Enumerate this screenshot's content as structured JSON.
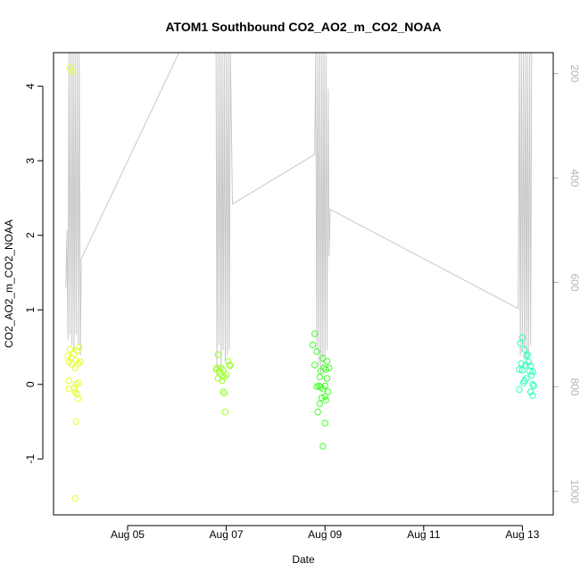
{
  "chart_data": {
    "type": "scatter",
    "title": "ATOM1 Southbound CO2_AO2_m_CO2_NOAA",
    "xlabel": "Date",
    "ylabel": "CO2_AO2_m_CO2_NOAA",
    "xlim": [
      "2016-08-03T12:00",
      "2016-08-13T15:00"
    ],
    "ylim": [
      -1.75,
      4.45
    ],
    "y_ticks": [
      "-1",
      "0",
      "1",
      "2",
      "3",
      "4"
    ],
    "x_ticks": [
      {
        "label": "Aug 05",
        "date": "2016-08-05"
      },
      {
        "label": "Aug 07",
        "date": "2016-08-07"
      },
      {
        "label": "Aug 09",
        "date": "2016-08-09"
      },
      {
        "label": "Aug 11",
        "date": "2016-08-11"
      },
      {
        "label": "Aug 13",
        "date": "2016-08-13"
      }
    ],
    "right_axis": {
      "description": "secondary axis (grey trace), inverted",
      "lim_top": 160,
      "lim_bottom": 1045,
      "ticks": [
        "200",
        "400",
        "600",
        "800",
        "1000"
      ],
      "color": "#b4b4b4"
    },
    "grid": false,
    "series": [
      {
        "color": "#e4ff2a",
        "points": [
          [
            "2016-08-03T20:00",
            4.25
          ],
          [
            "2016-08-03T21:00",
            4.2
          ],
          [
            "2016-08-03T19:00",
            0.38
          ],
          [
            "2016-08-03T19:30",
            0.3
          ],
          [
            "2016-08-03T20:00",
            0.47
          ],
          [
            "2016-08-03T20:30",
            0.35
          ],
          [
            "2016-08-03T21:00",
            0.27
          ],
          [
            "2016-08-03T22:00",
            0.41
          ],
          [
            "2016-08-03T22:30",
            0.22
          ],
          [
            "2016-08-03T23:00",
            0.32
          ],
          [
            "2016-08-03T23:30",
            0.45
          ],
          [
            "2016-08-04T00:30",
            0.5
          ],
          [
            "2016-08-04T01:00",
            0.3
          ],
          [
            "2016-08-04T00:00",
            0.28
          ],
          [
            "2016-08-03T19:30",
            0.05
          ],
          [
            "2016-08-03T19:30",
            -0.06
          ],
          [
            "2016-08-03T22:00",
            -0.05
          ],
          [
            "2016-08-03T22:30",
            -0.1
          ],
          [
            "2016-08-03T23:00",
            0.0
          ],
          [
            "2016-08-04T00:00",
            0.02
          ],
          [
            "2016-08-03T23:30",
            -0.13
          ],
          [
            "2016-08-04T00:00",
            -0.19
          ],
          [
            "2016-08-03T23:00",
            -0.5
          ],
          [
            "2016-08-03T22:30",
            -1.53
          ]
        ]
      },
      {
        "color": "#9dff2a",
        "points": [
          [
            "2016-08-06T20:00",
            0.4
          ],
          [
            "2016-08-06T19:00",
            0.2
          ],
          [
            "2016-08-06T19:30",
            0.22
          ],
          [
            "2016-08-06T20:30",
            0.18
          ],
          [
            "2016-08-06T21:00",
            0.15
          ],
          [
            "2016-08-06T21:30",
            0.22
          ],
          [
            "2016-08-06T22:00",
            0.12
          ],
          [
            "2016-08-06T22:30",
            0.19
          ],
          [
            "2016-08-06T23:00",
            0.1
          ],
          [
            "2016-08-07T00:00",
            0.13
          ],
          [
            "2016-08-07T01:00",
            0.31
          ],
          [
            "2016-08-07T01:30",
            0.26
          ],
          [
            "2016-08-07T02:00",
            0.25
          ],
          [
            "2016-08-06T20:00",
            0.08
          ],
          [
            "2016-08-06T22:00",
            0.05
          ],
          [
            "2016-08-06T22:30",
            -0.1
          ],
          [
            "2016-08-06T23:00",
            -0.12
          ],
          [
            "2016-08-06T23:30",
            -0.37
          ]
        ]
      },
      {
        "color": "#40ff28",
        "points": [
          [
            "2016-08-08T19:00",
            0.68
          ],
          [
            "2016-08-08T18:00",
            0.53
          ],
          [
            "2016-08-08T20:00",
            0.44
          ],
          [
            "2016-08-08T19:00",
            0.26
          ],
          [
            "2016-08-08T23:00",
            0.35
          ],
          [
            "2016-08-09T01:00",
            0.31
          ],
          [
            "2016-08-08T22:00",
            0.18
          ],
          [
            "2016-08-08T23:30",
            0.22
          ],
          [
            "2016-08-09T00:30",
            0.2
          ],
          [
            "2016-08-09T02:00",
            0.22
          ],
          [
            "2016-08-09T01:00",
            0.08
          ],
          [
            "2016-08-08T21:30",
            0.1
          ],
          [
            "2016-08-08T20:00",
            -0.03
          ],
          [
            "2016-08-08T21:00",
            -0.02
          ],
          [
            "2016-08-08T22:00",
            -0.04
          ],
          [
            "2016-08-08T23:00",
            -0.06
          ],
          [
            "2016-08-09T00:00",
            -0.02
          ],
          [
            "2016-08-09T01:30",
            -0.1
          ],
          [
            "2016-08-09T00:00",
            -0.16
          ],
          [
            "2016-08-08T22:30",
            -0.18
          ],
          [
            "2016-08-08T21:30",
            -0.26
          ],
          [
            "2016-08-09T00:30",
            -0.21
          ],
          [
            "2016-08-08T20:30",
            -0.37
          ],
          [
            "2016-08-09T00:00",
            -0.52
          ],
          [
            "2016-08-08T23:00",
            -0.83
          ]
        ]
      },
      {
        "color": "#2affb8",
        "points": [
          [
            "2016-08-13T00:00",
            0.63
          ],
          [
            "2016-08-12T23:00",
            0.55
          ],
          [
            "2016-08-13T01:00",
            0.47
          ],
          [
            "2016-08-13T02:00",
            0.38
          ],
          [
            "2016-08-13T02:30",
            0.4
          ],
          [
            "2016-08-13T03:00",
            0.3
          ],
          [
            "2016-08-12T23:30",
            0.28
          ],
          [
            "2016-08-13T01:30",
            0.26
          ],
          [
            "2016-08-13T04:00",
            0.25
          ],
          [
            "2016-08-12T22:30",
            0.2
          ],
          [
            "2016-08-13T00:00",
            0.19
          ],
          [
            "2016-08-13T03:30",
            0.18
          ],
          [
            "2016-08-13T05:00",
            0.17
          ],
          [
            "2016-08-13T04:30",
            0.12
          ],
          [
            "2016-08-13T01:00",
            0.05
          ],
          [
            "2016-08-13T02:00",
            0.08
          ],
          [
            "2016-08-13T05:00",
            0.0
          ],
          [
            "2016-08-13T05:30",
            -0.02
          ],
          [
            "2016-08-13T00:30",
            0.02
          ],
          [
            "2016-08-12T22:30",
            -0.07
          ],
          [
            "2016-08-13T04:00",
            -0.1
          ],
          [
            "2016-08-13T05:00",
            -0.15
          ]
        ]
      }
    ],
    "secondary_trace": {
      "color": "#c8c8c8",
      "points": [
        [
          "2016-08-03T18:00",
          610
        ],
        [
          "2016-08-03T18:30",
          500
        ],
        [
          "2016-08-03T19:00",
          710
        ],
        [
          "2016-08-03T19:30",
          160
        ],
        [
          "2016-08-03T20:00",
          700
        ],
        [
          "2016-08-03T20:30",
          160
        ],
        [
          "2016-08-03T21:00",
          720
        ],
        [
          "2016-08-03T21:30",
          160
        ],
        [
          "2016-08-03T22:00",
          730
        ],
        [
          "2016-08-03T22:30",
          160
        ],
        [
          "2016-08-03T23:00",
          700
        ],
        [
          "2016-08-03T23:30",
          160
        ],
        [
          "2016-08-04T00:00",
          720
        ],
        [
          "2016-08-04T00:30",
          160
        ],
        [
          "2016-08-04T01:00",
          740
        ],
        [
          "2016-08-04T01:30",
          555
        ],
        [
          "2016-08-06T01:00",
          160
        ],
        [
          "2016-08-06T19:00",
          160
        ],
        [
          "2016-08-06T19:30",
          780
        ],
        [
          "2016-08-06T20:00",
          160
        ],
        [
          "2016-08-06T20:30",
          720
        ],
        [
          "2016-08-06T21:00",
          160
        ],
        [
          "2016-08-06T21:30",
          770
        ],
        [
          "2016-08-06T22:00",
          160
        ],
        [
          "2016-08-06T22:30",
          730
        ],
        [
          "2016-08-06T23:00",
          160
        ],
        [
          "2016-08-06T23:30",
          750
        ],
        [
          "2016-08-07T00:00",
          160
        ],
        [
          "2016-08-07T00:30",
          740
        ],
        [
          "2016-08-07T01:00",
          160
        ],
        [
          "2016-08-07T01:30",
          730
        ],
        [
          "2016-08-07T02:00",
          160
        ],
        [
          "2016-08-07T03:00",
          450
        ],
        [
          "2016-08-08T19:00",
          355
        ],
        [
          "2016-08-08T19:30",
          160
        ],
        [
          "2016-08-08T20:00",
          730
        ],
        [
          "2016-08-08T20:30",
          160
        ],
        [
          "2016-08-08T21:00",
          760
        ],
        [
          "2016-08-08T21:30",
          160
        ],
        [
          "2016-08-08T22:00",
          780
        ],
        [
          "2016-08-08T22:30",
          160
        ],
        [
          "2016-08-08T23:00",
          760
        ],
        [
          "2016-08-08T23:30",
          160
        ],
        [
          "2016-08-09T00:00",
          740
        ],
        [
          "2016-08-09T00:30",
          160
        ],
        [
          "2016-08-09T01:00",
          730
        ],
        [
          "2016-08-09T01:30",
          230
        ],
        [
          "2016-08-09T02:00",
          550
        ],
        [
          "2016-08-09T02:30",
          460
        ],
        [
          "2016-08-12T22:00",
          650
        ],
        [
          "2016-08-12T22:30",
          160
        ],
        [
          "2016-08-12T23:00",
          740
        ],
        [
          "2016-08-12T23:30",
          160
        ],
        [
          "2016-08-13T00:00",
          720
        ],
        [
          "2016-08-13T00:30",
          160
        ],
        [
          "2016-08-13T01:00",
          730
        ],
        [
          "2016-08-13T01:30",
          160
        ],
        [
          "2016-08-13T02:00",
          760
        ],
        [
          "2016-08-13T02:30",
          160
        ],
        [
          "2016-08-13T03:00",
          740
        ],
        [
          "2016-08-13T03:30",
          160
        ],
        [
          "2016-08-13T04:00",
          720
        ],
        [
          "2016-08-13T04:30",
          160
        ]
      ]
    }
  }
}
